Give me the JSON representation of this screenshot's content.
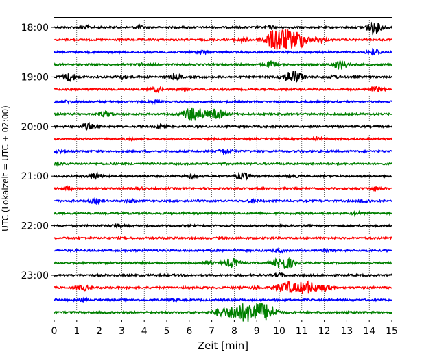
{
  "chart_data": {
    "type": "line",
    "title": "",
    "xlabel": "Zeit  [min]",
    "ylabel": "UTC (Lokalzeit = UTC + 02:00)",
    "xlim": [
      0,
      15
    ],
    "xticks": [
      0,
      1,
      2,
      3,
      4,
      5,
      6,
      7,
      8,
      9,
      10,
      11,
      12,
      13,
      14,
      15
    ],
    "ytick_labels": [
      "18:00",
      "19:00",
      "20:00",
      "21:00",
      "22:00",
      "23:00"
    ],
    "grid": "vertical-dotted",
    "trace_colors": [
      "#000000",
      "#ff0000",
      "#0000ff",
      "#008000"
    ],
    "traces": [
      {
        "start": "18:00",
        "events": [
          [
            1.4,
            0.5
          ],
          [
            3.8,
            0.4
          ],
          [
            9.6,
            0.4
          ],
          [
            14.2,
            1.8
          ]
        ]
      },
      {
        "start": "18:15",
        "events": [
          [
            8.3,
            0.7
          ],
          [
            10.0,
            4.0
          ],
          [
            10.9,
            2.2
          ],
          [
            11.8,
            0.8
          ]
        ]
      },
      {
        "start": "18:30",
        "events": [
          [
            6.6,
            0.5
          ],
          [
            14.2,
            1.0
          ]
        ]
      },
      {
        "start": "18:45",
        "events": [
          [
            3.9,
            0.4
          ],
          [
            9.6,
            0.9
          ],
          [
            12.7,
            1.5
          ]
        ]
      },
      {
        "start": "19:00",
        "events": [
          [
            0.7,
            1.3
          ],
          [
            3.0,
            0.6
          ],
          [
            5.4,
            0.7
          ],
          [
            10.6,
            2.2
          ],
          [
            12.5,
            0.5
          ]
        ]
      },
      {
        "start": "19:15",
        "events": [
          [
            4.5,
            0.8
          ],
          [
            5.8,
            0.5
          ],
          [
            14.3,
            0.8
          ]
        ]
      },
      {
        "start": "19:30",
        "events": [
          [
            0.6,
            0.3
          ],
          [
            4.4,
            0.4
          ]
        ]
      },
      {
        "start": "19:45",
        "events": [
          [
            2.3,
            0.8
          ],
          [
            6.2,
            2.6
          ],
          [
            7.2,
            1.6
          ]
        ]
      },
      {
        "start": "20:00",
        "events": [
          [
            1.5,
            1.0
          ],
          [
            4.7,
            0.4
          ]
        ]
      },
      {
        "start": "20:15",
        "events": [
          [
            3.4,
            0.4
          ],
          [
            11.7,
            0.4
          ]
        ]
      },
      {
        "start": "20:30",
        "events": [
          [
            0.2,
            0.4
          ],
          [
            7.6,
            0.9
          ]
        ]
      },
      {
        "start": "20:45",
        "events": [
          [
            0.2,
            0.3
          ]
        ]
      },
      {
        "start": "21:00",
        "events": [
          [
            1.8,
            1.1
          ],
          [
            6.1,
            0.6
          ],
          [
            8.4,
            1.0
          ],
          [
            10.6,
            0.4
          ]
        ]
      },
      {
        "start": "21:15",
        "events": [
          [
            0.6,
            0.4
          ],
          [
            3.8,
            0.4
          ],
          [
            14.3,
            0.6
          ]
        ]
      },
      {
        "start": "21:30",
        "events": [
          [
            1.8,
            0.7
          ],
          [
            3.4,
            0.5
          ],
          [
            8.8,
            0.4
          ],
          [
            13.8,
            0.6
          ]
        ]
      },
      {
        "start": "21:45",
        "events": [
          [
            13.4,
            0.4
          ]
        ]
      },
      {
        "start": "22:00",
        "events": [
          [
            2.8,
            0.4
          ]
        ]
      },
      {
        "start": "22:15",
        "events": []
      },
      {
        "start": "22:30",
        "events": [
          [
            10.0,
            0.5
          ],
          [
            12.0,
            0.5
          ]
        ]
      },
      {
        "start": "22:45",
        "events": [
          [
            6.8,
            0.5
          ],
          [
            7.9,
            1.3
          ],
          [
            10.2,
            2.1
          ]
        ]
      },
      {
        "start": "23:00",
        "events": [
          [
            10.0,
            0.5
          ]
        ]
      },
      {
        "start": "23:15",
        "events": [
          [
            1.3,
            0.8
          ],
          [
            9.0,
            0.5
          ],
          [
            10.3,
            2.0
          ],
          [
            11.2,
            2.2
          ],
          [
            12.0,
            1.0
          ]
        ]
      },
      {
        "start": "23:30",
        "events": [
          [
            1.3,
            0.3
          ],
          [
            5.2,
            0.3
          ]
        ]
      },
      {
        "start": "23:45",
        "events": [
          [
            7.4,
            1.3
          ],
          [
            8.1,
            2.2
          ],
          [
            8.9,
            3.5
          ],
          [
            9.6,
            1.6
          ]
        ]
      }
    ]
  }
}
